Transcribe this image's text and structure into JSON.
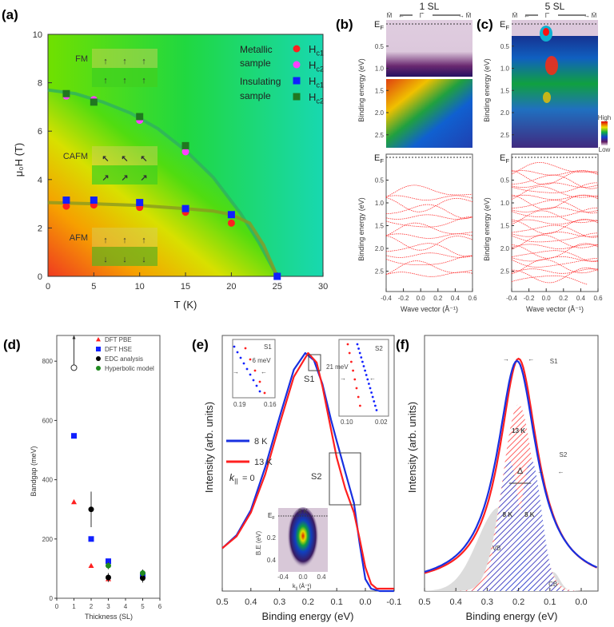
{
  "panels": {
    "a": "(a)",
    "b": "(b)",
    "c": "(c)",
    "d": "(d)",
    "e": "(e)",
    "f": "(f)"
  },
  "colors": {
    "red": "#ff2020",
    "magenta": "#ff40ff",
    "blue": "#1020ff",
    "dkgreen": "#207820",
    "curve13": "#ff2020",
    "curve8": "#1830e0"
  },
  "chart_data": [
    {
      "id": "a",
      "type": "scatter",
      "title": "",
      "xlabel": "T (K)",
      "ylabel": "μ₀H (T)",
      "xlim": [
        0,
        30
      ],
      "ylim": [
        0,
        10
      ],
      "xticks": [
        "0",
        "5",
        "10",
        "15",
        "20",
        "25",
        "30"
      ],
      "yticks": [
        "0",
        "2",
        "4",
        "6",
        "8",
        "10"
      ],
      "phase_labels": [
        "FM",
        "CAFM",
        "AFM"
      ],
      "legend": {
        "group1": [
          "Metallic",
          "sample"
        ],
        "group2": [
          "Insulating",
          "sample"
        ],
        "entries": [
          {
            "main": "H",
            "sub": "c1"
          },
          {
            "main": "H",
            "sub": "c2"
          },
          {
            "main": "H",
            "sub": "c1"
          },
          {
            "main": "H",
            "sub": "c2"
          }
        ]
      },
      "series": [
        {
          "name": "Metallic Hc1",
          "marker": "circle",
          "color": "#ff2020",
          "points": [
            [
              2,
              2.9
            ],
            [
              5,
              2.95
            ],
            [
              10,
              2.85
            ],
            [
              15,
              2.65
            ],
            [
              20,
              2.2
            ]
          ]
        },
        {
          "name": "Metallic Hc2",
          "marker": "circle",
          "color": "#ff40ff",
          "points": [
            [
              2,
              7.45
            ],
            [
              5,
              7.3
            ],
            [
              10,
              6.45
            ],
            [
              15,
              5.15
            ]
          ]
        },
        {
          "name": "Insulating Hc1",
          "marker": "square",
          "color": "#1020ff",
          "points": [
            [
              2,
              3.15
            ],
            [
              5,
              3.15
            ],
            [
              10,
              3.05
            ],
            [
              15,
              2.8
            ],
            [
              20,
              2.55
            ],
            [
              25,
              0
            ]
          ]
        },
        {
          "name": "Insulating Hc2",
          "marker": "square",
          "color": "#207820",
          "points": [
            [
              2,
              7.55
            ],
            [
              5,
              7.2
            ],
            [
              10,
              6.6
            ],
            [
              15,
              5.4
            ]
          ]
        }
      ],
      "boundaries": [
        {
          "name": "Hc2 line",
          "points": [
            [
              0,
              7.7
            ],
            [
              3,
              7.55
            ],
            [
              6,
              7.2
            ],
            [
              9,
              6.75
            ],
            [
              12,
              6.1
            ],
            [
              15,
              5.2
            ],
            [
              18,
              4.1
            ],
            [
              21,
              2.6
            ],
            [
              23,
              1.4
            ],
            [
              25,
              0
            ]
          ]
        },
        {
          "name": "Hc1 line",
          "points": [
            [
              0,
              3.05
            ],
            [
              5,
              3.0
            ],
            [
              10,
              2.93
            ],
            [
              15,
              2.8
            ],
            [
              18,
              2.7
            ],
            [
              20,
              2.55
            ],
            [
              22,
              2.2
            ],
            [
              23.5,
              1.3
            ],
            [
              25,
              0
            ]
          ]
        }
      ]
    },
    {
      "id": "b",
      "type": "heatmap",
      "title": "1 SL",
      "k_labels": [
        "M̄",
        "Γ̄",
        "M̄"
      ],
      "ef_label": "E",
      "ef_sub": "F",
      "ylabel": "Binding energy (eV)",
      "xlabel": "Wave vector (Å⁻¹)",
      "yticks": [
        "0.5",
        "1.0",
        "1.5",
        "2.0",
        "2.5"
      ],
      "xticks": [
        "-0.4",
        "-0.2",
        "0.0",
        "0.2",
        "0.4",
        "0.6"
      ],
      "ylim": [
        0,
        2.8
      ],
      "xlim": [
        -0.4,
        0.6
      ]
    },
    {
      "id": "c",
      "type": "heatmap",
      "title": "5 SL",
      "k_labels": [
        "M̄",
        "Γ̄",
        "M̄"
      ],
      "ef_label": "E",
      "ef_sub": "F",
      "ylabel": "Binding energy (eV)",
      "xlabel": "Wave vector (Å⁻¹)",
      "yticks": [
        "0.5",
        "1.0",
        "1.5",
        "2.0",
        "2.5"
      ],
      "xticks": [
        "-0.4",
        "-0.2",
        "0.0",
        "0.2",
        "0.4",
        "0.6"
      ],
      "colorbar": [
        "High",
        "Low"
      ],
      "ylim": [
        0,
        2.8
      ],
      "xlim": [
        -0.4,
        0.6
      ]
    },
    {
      "id": "d",
      "type": "scatter",
      "xlabel": "Thickness (SL)",
      "ylabel": "Bandgap (meV)",
      "xlim": [
        0,
        6
      ],
      "ylim": [
        0,
        880
      ],
      "xticks": [
        "0",
        "1",
        "2",
        "3",
        "4",
        "5",
        "6"
      ],
      "yticks": [
        "0",
        "200",
        "400",
        "600",
        "800"
      ],
      "series": [
        {
          "name": "DFT PBE",
          "marker": "triangle",
          "color": "#ff2020",
          "points": [
            [
              1,
              325
            ],
            [
              2,
              110
            ],
            [
              3,
              65
            ],
            [
              5,
              75
            ]
          ]
        },
        {
          "name": "DFT HSE",
          "marker": "square",
          "color": "#1020ff",
          "points": [
            [
              1,
              548
            ],
            [
              2,
              200
            ],
            [
              3,
              125
            ],
            [
              5,
              78
            ]
          ]
        },
        {
          "name": "EDC analysis",
          "marker": "circle",
          "color": "#000000",
          "points": [
            [
              2,
              300,
              60
            ],
            [
              3,
              70,
              15
            ],
            [
              5,
              68,
              15
            ]
          ]
        },
        {
          "name": "Hyperbolic model",
          "marker": "circle",
          "color": "#208a20",
          "points": [
            [
              3,
              110,
              12
            ],
            [
              5,
              85,
              12
            ]
          ]
        }
      ],
      "lower_bound": {
        "x": 1,
        "y": 778,
        "arrow_to": 880
      }
    },
    {
      "id": "e",
      "type": "line",
      "xlabel": "Binding energy (eV)",
      "ylabel": "Intensity (arb. units)",
      "xlim": [
        0.5,
        -0.1
      ],
      "xticks": [
        "0.5",
        "0.4",
        "0.3",
        "0.2",
        "0.1",
        "0.0",
        "-0.1"
      ],
      "legend": [
        "8 K",
        "13 K"
      ],
      "k_label": "k",
      "k_sub": "||",
      "k_value": "= 0",
      "box_labels": [
        "S1",
        "S2"
      ],
      "series": [
        {
          "name": "8 K",
          "color": "#1830e0",
          "points": [
            [
              0.5,
              0.18
            ],
            [
              0.45,
              0.235
            ],
            [
              0.4,
              0.34
            ],
            [
              0.35,
              0.52
            ],
            [
              0.3,
              0.73
            ],
            [
              0.25,
              0.93
            ],
            [
              0.21,
              1.0
            ],
            [
              0.18,
              0.97
            ],
            [
              0.15,
              0.87
            ],
            [
              0.12,
              0.72
            ],
            [
              0.1,
              0.63
            ],
            [
              0.07,
              0.5
            ],
            [
              0.04,
              0.37
            ],
            [
              0.02,
              0.2
            ],
            [
              0.0,
              0.05
            ],
            [
              -0.02,
              0.01
            ],
            [
              -0.05,
              0.0
            ],
            [
              -0.1,
              0.0
            ]
          ]
        },
        {
          "name": "13 K",
          "color": "#ff2020",
          "points": [
            [
              0.5,
              0.18
            ],
            [
              0.45,
              0.23
            ],
            [
              0.4,
              0.33
            ],
            [
              0.35,
              0.49
            ],
            [
              0.3,
              0.7
            ],
            [
              0.25,
              0.9
            ],
            [
              0.2,
              1.0
            ],
            [
              0.17,
              0.96
            ],
            [
              0.15,
              0.86
            ],
            [
              0.12,
              0.68
            ],
            [
              0.1,
              0.56
            ],
            [
              0.07,
              0.43
            ],
            [
              0.04,
              0.33
            ],
            [
              0.02,
              0.22
            ],
            [
              0.0,
              0.1
            ],
            [
              -0.02,
              0.03
            ],
            [
              -0.04,
              0.01
            ],
            [
              -0.1,
              0.01
            ]
          ]
        }
      ],
      "inset_s1": {
        "title": "S1",
        "annotation": "6 meV",
        "xticks": [
          "0.19",
          "0.16"
        ]
      },
      "inset_s2": {
        "title": "S2",
        "annotation": "21 meV",
        "xticks": [
          "0.10",
          "0.02"
        ]
      },
      "inset_arpes": {
        "title": "8 K",
        "ef_label": "E",
        "ef_sub": "F",
        "ylabel": "B.E (eV)",
        "yticks": [
          "0.2",
          "0.4"
        ],
        "xticks": [
          "-0.4",
          "0.0",
          "0.4"
        ],
        "xlabel": "k",
        "xlabel_sub": "||",
        "xlabel_unit": " (Å⁻¹)"
      }
    },
    {
      "id": "f",
      "type": "area",
      "xlabel": "Binding energy (eV)",
      "ylabel": "Intensity (arb. units)",
      "xlim": [
        0.5,
        -0.05
      ],
      "xticks": [
        "0.5",
        "0.4",
        "0.3",
        "0.2",
        "0.1",
        "0.0"
      ],
      "series": [
        {
          "name": "13 K",
          "color": "#ff2020",
          "center": 0.2,
          "height": 1.0,
          "width": 0.085,
          "offset": 0.02
        },
        {
          "name": "8 K",
          "color": "#1830e0",
          "center": 0.205,
          "height": 0.99,
          "width": 0.088,
          "offset": 0.0
        }
      ],
      "components": [
        {
          "name": "13 K",
          "label": "13 K",
          "color": "#ff4040",
          "center": 0.2,
          "height": 0.78,
          "width": 0.075
        },
        {
          "name": "8 K left",
          "label": "8 K",
          "color": "#3040d0",
          "center": 0.23,
          "height": 0.55,
          "width": 0.05
        },
        {
          "name": "8 K right",
          "label": "8 K",
          "color": "#3040d0",
          "center": 0.16,
          "height": 0.55,
          "width": 0.05
        }
      ],
      "bands": [
        {
          "label": "VB"
        },
        {
          "label": "CB"
        }
      ],
      "annotations": [
        "S1",
        "S2",
        "Δ"
      ]
    }
  ]
}
